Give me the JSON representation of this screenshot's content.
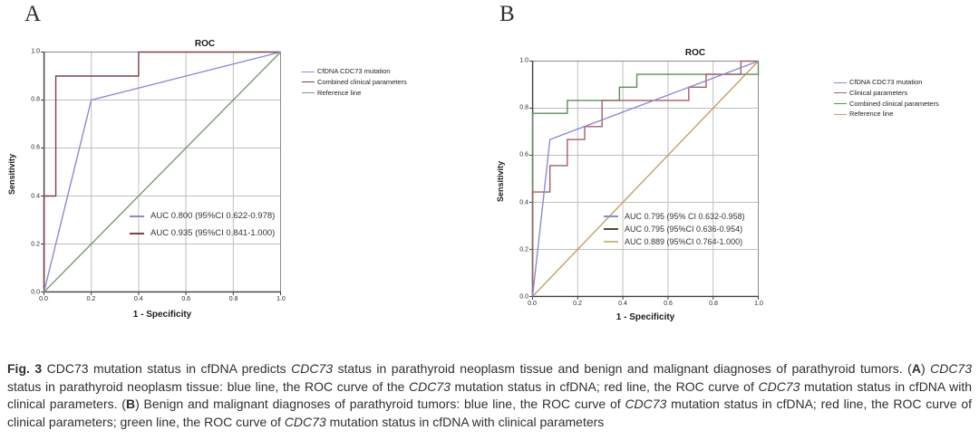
{
  "panel_labels": [
    "A",
    "B"
  ],
  "chart_data": [
    {
      "type": "line",
      "title": "ROC",
      "xlabel": "1 - Specificity",
      "ylabel": "Sensitivity",
      "xlim": [
        0,
        1
      ],
      "ylim": [
        0,
        1
      ],
      "xticks": [
        "0.0",
        "0.2",
        "0.4",
        "0.6",
        "0.8",
        "1.0"
      ],
      "yticks": [
        "0.0",
        "0.2",
        "0.4",
        "0.6",
        "0.8",
        "1.0"
      ],
      "grid": true,
      "legend_position": "right",
      "series": [
        {
          "name": "CfDNA CDC73 mutation",
          "color": "#8a8ad4",
          "points": [
            [
              0,
              0
            ],
            [
              0.2,
              0.8
            ],
            [
              1,
              1
            ]
          ]
        },
        {
          "name": "Combined clinical parameters",
          "color": "#7e4145",
          "points": [
            [
              0,
              0
            ],
            [
              0,
              0.4
            ],
            [
              0.05,
              0.4
            ],
            [
              0.05,
              0.9
            ],
            [
              0.4,
              0.9
            ],
            [
              0.4,
              1
            ],
            [
              1,
              1
            ]
          ]
        },
        {
          "name": "Reference line",
          "color": "#7f9678",
          "points": [
            [
              0,
              0
            ],
            [
              1,
              1
            ]
          ]
        }
      ],
      "auc_labels": [
        {
          "text": "AUC 0.800 (95%CI 0.622-0.978)",
          "color": "#8a8ad4"
        },
        {
          "text": "AUC 0.935 (95%CI 0.841-1.000)",
          "color": "#7e4145"
        }
      ]
    },
    {
      "type": "line",
      "title": "ROC",
      "xlabel": "1 - Specificity",
      "ylabel": "Sensitivity",
      "xlim": [
        0,
        1
      ],
      "ylim": [
        0,
        1
      ],
      "xticks": [
        "0.0",
        "0.2",
        "0.4",
        "0.6",
        "0.8",
        "1.0"
      ],
      "yticks": [
        "0.0",
        "0.2",
        "0.4",
        "0.6",
        "0.8",
        "1.0"
      ],
      "grid": true,
      "legend_position": "right",
      "series": [
        {
          "name": "CfDNA CDC73 mutation",
          "color": "#8a8ad4",
          "points": [
            [
              0,
              0
            ],
            [
              0.077,
              0.667
            ],
            [
              1,
              1
            ]
          ]
        },
        {
          "name": "Clinical parameters",
          "color": "#a35f63",
          "points": [
            [
              0,
              0
            ],
            [
              0,
              0.444
            ],
            [
              0.077,
              0.444
            ],
            [
              0.077,
              0.556
            ],
            [
              0.154,
              0.556
            ],
            [
              0.154,
              0.667
            ],
            [
              0.231,
              0.667
            ],
            [
              0.231,
              0.722
            ],
            [
              0.308,
              0.722
            ],
            [
              0.308,
              0.833
            ],
            [
              0.692,
              0.833
            ],
            [
              0.692,
              0.889
            ],
            [
              0.769,
              0.889
            ],
            [
              0.769,
              0.944
            ],
            [
              0.923,
              0.944
            ],
            [
              0.923,
              1
            ],
            [
              1,
              1
            ]
          ]
        },
        {
          "name": "Combined clinical parameters",
          "color": "#5f8c58",
          "points": [
            [
              0,
              0
            ],
            [
              0,
              0.778
            ],
            [
              0.154,
              0.778
            ],
            [
              0.154,
              0.833
            ],
            [
              0.385,
              0.833
            ],
            [
              0.385,
              0.889
            ],
            [
              0.462,
              0.889
            ],
            [
              0.462,
              0.944
            ],
            [
              1,
              0.944
            ],
            [
              1,
              1
            ]
          ]
        },
        {
          "name": "Reference line",
          "color": "#bfa264",
          "points": [
            [
              0,
              0
            ],
            [
              1,
              1
            ]
          ]
        }
      ],
      "auc_labels": [
        {
          "text": "AUC 0.795 (95% CI 0.632-0.958)",
          "color": "#8a8ad4"
        },
        {
          "text": "AUC 0.795 (95%CI 0.636-0.954)",
          "color": "#55452f"
        },
        {
          "text": "AUC 0.889 (95%CI 0.764-1.000)",
          "color": "#c9bc7f"
        }
      ]
    }
  ],
  "caption": {
    "segments": [
      {
        "t": "Fig. 3",
        "b": true
      },
      {
        "t": " CDC73 mutation status in cfDNA predicts "
      },
      {
        "t": "CDC73",
        "i": true
      },
      {
        "t": " status in parathyroid neoplasm tissue and benign and malignant diagnoses of parathyroid tumors. ("
      },
      {
        "t": "A",
        "b": true
      },
      {
        "t": ") "
      },
      {
        "t": "CDC73",
        "i": true
      },
      {
        "t": " status in parathyroid neoplasm tissue: blue line, the ROC curve of the "
      },
      {
        "t": "CDC73",
        "i": true
      },
      {
        "t": " mutation status in cfDNA; red line, the ROC curve of "
      },
      {
        "t": "CDC73",
        "i": true
      },
      {
        "t": " mutation status in cfDNA with clinical parameters. ("
      },
      {
        "t": "B",
        "b": true
      },
      {
        "t": ") Benign and malignant diagnoses of parathyroid tumors: blue line, the ROC curve of "
      },
      {
        "t": "CDC73",
        "i": true
      },
      {
        "t": " mutation status in cfDNA; red line, the ROC curve of clinical parameters; green line, the ROC curve of "
      },
      {
        "t": "CDC73",
        "i": true
      },
      {
        "t": " mutation status in cfDNA with clinical parameters"
      }
    ]
  }
}
